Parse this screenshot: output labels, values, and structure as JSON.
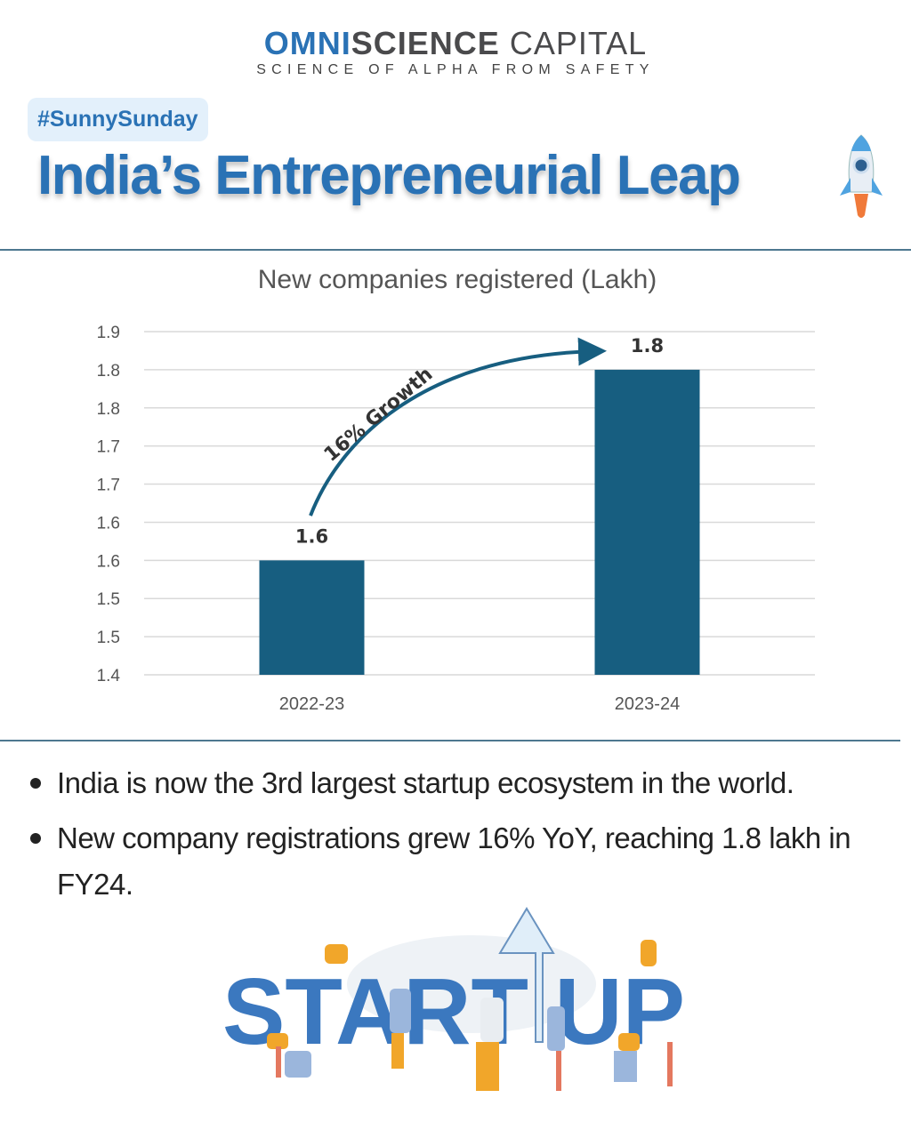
{
  "logo": {
    "part1": "OMNI",
    "part2": "SCIENCE",
    "part3": "CAPITAL",
    "tagline": "SCIENCE OF ALPHA FROM SAFETY"
  },
  "hashtag": "#SunnySunday",
  "title": "India’s Entrepreneurial Leap",
  "chart_data": {
    "type": "bar",
    "title": "New companies registered (Lakh)",
    "categories": [
      "2022-23",
      "2023-24"
    ],
    "values": [
      1.55,
      1.8
    ],
    "data_labels": [
      "1.6",
      "1.8"
    ],
    "ylim": [
      1.4,
      1.85
    ],
    "yticks": [
      1.4,
      1.45,
      1.5,
      1.55,
      1.6,
      1.65,
      1.7,
      1.75,
      1.8,
      1.85
    ],
    "ytick_labels": [
      "1.4",
      "1.5",
      "1.5",
      "1.6",
      "1.6",
      "1.7",
      "1.7",
      "1.8",
      "1.8",
      "1.9"
    ],
    "grid": true,
    "bar_color": "#175e80",
    "annotation": "16% Growth"
  },
  "bullets": [
    "India is now the 3rd largest startup ecosystem in the world.",
    "New company registrations grew 16% YoY, reaching 1.8 lakh in FY24."
  ],
  "illustration": {
    "word": "START UP"
  }
}
